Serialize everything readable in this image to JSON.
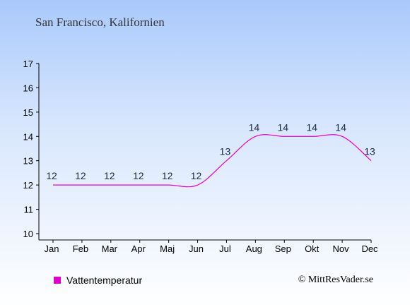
{
  "header": {
    "title": "San Francisco, Kalifornien"
  },
  "legend": {
    "label": "Vattentemperatur"
  },
  "footer": {
    "credit": "© MittResVader.se"
  },
  "colors": {
    "series": "#e000d0",
    "axis": "#000000",
    "labels": "#1a2a4a"
  },
  "chart_data": {
    "type": "line",
    "categories": [
      "Jan",
      "Feb",
      "Mar",
      "Apr",
      "Maj",
      "Jun",
      "Jul",
      "Aug",
      "Sep",
      "Okt",
      "Nov",
      "Dec"
    ],
    "series": [
      {
        "name": "Vattentemperatur",
        "values": [
          12,
          12,
          12,
          12,
          12,
          12,
          13,
          14,
          14,
          14,
          14,
          13
        ]
      }
    ],
    "data_labels": [
      "12",
      "12",
      "12",
      "12",
      "12",
      "12",
      "13",
      "14",
      "14",
      "14",
      "14",
      "13"
    ],
    "yticks": [
      10,
      11,
      12,
      13,
      14,
      15,
      16,
      17
    ],
    "ylim": [
      10,
      17
    ],
    "grid": false
  }
}
